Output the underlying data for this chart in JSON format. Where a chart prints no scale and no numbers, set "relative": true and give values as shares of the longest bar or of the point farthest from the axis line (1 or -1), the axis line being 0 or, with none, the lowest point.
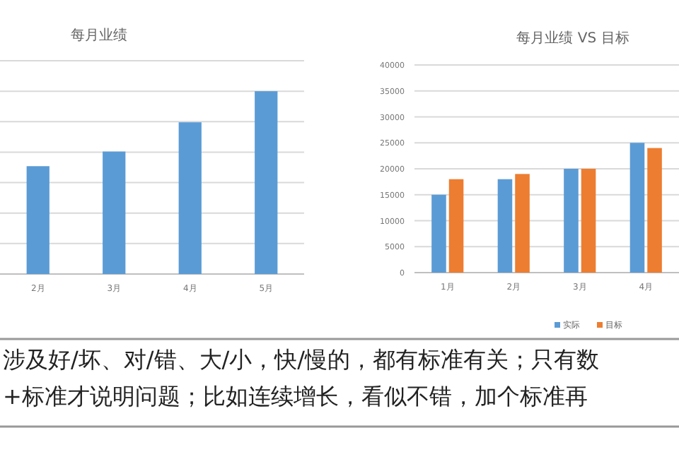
{
  "chart_data": [
    {
      "type": "bar",
      "title": "每月业绩",
      "categories": [
        "2月",
        "3月",
        "4月",
        "5月"
      ],
      "relative": true,
      "values": [
        0.59,
        0.67,
        0.83,
        1
      ],
      "color": "#5b9bd5",
      "grid": "y"
    },
    {
      "type": "bar",
      "title": "每月业绩 VS 目标",
      "categories": [
        "1月",
        "2月",
        "3月",
        "4月"
      ],
      "series": [
        {
          "name": "实际",
          "color": "#5b9bd5",
          "values": [
            15000,
            18000,
            20000,
            25000
          ]
        },
        {
          "name": "目标",
          "color": "#ed7d31",
          "values": [
            18000,
            19000,
            20000,
            24000
          ]
        }
      ],
      "ylim": [
        0,
        40000
      ],
      "yticks": [
        0,
        5000,
        10000,
        15000,
        20000,
        25000,
        30000,
        35000,
        40000
      ],
      "grid": "y",
      "legend": "bottom"
    },
    {
      "type": "other",
      "annotations": [
        "涉及好/坏、对/错、大/小，快/慢的，都有标准有关；只有数",
        "+标准才说明问题；比如连续增长，看似不错，加个标准再"
      ]
    }
  ]
}
